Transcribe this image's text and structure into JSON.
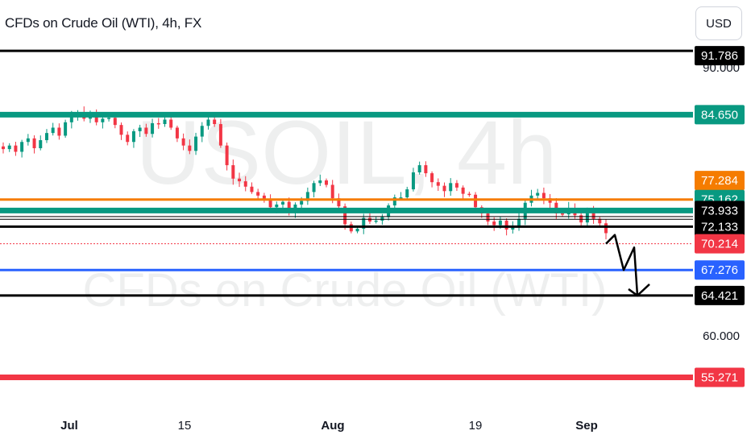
{
  "header": {
    "title": "CFDs on Crude Oil (WTI), 4h, FX",
    "currency": "USD"
  },
  "chart_data": {
    "type": "candlestick",
    "watermark": {
      "symbol": "USOIL, 4h",
      "description": "CFDs on Crude Oil (WTI)"
    },
    "x_ticks": [
      "Jul",
      "15",
      "Aug",
      "19",
      "Sep"
    ],
    "y_ticks": [
      "90.000",
      "60.000"
    ],
    "horizontal_levels": [
      {
        "label": "91.786",
        "value": 91.786,
        "line_color": "#000000",
        "label_bg": "#000000",
        "label_color": "#ffffff",
        "style": "solid"
      },
      {
        "label": "84.650",
        "value": 84.65,
        "line_color": "#089981",
        "label_bg": "#089981",
        "label_color": "#ffffff",
        "style": "thick"
      },
      {
        "label": "77.284",
        "value": 77.284,
        "line_color": "#f57c00",
        "label_bg": "#f57c00",
        "label_color": "#ffffff",
        "style": "label-only"
      },
      {
        "label": "75.162",
        "value": 75.162,
        "line_color": "#f57c00",
        "label_bg": "#089981",
        "label_color": "#ffffff",
        "style": "solid"
      },
      {
        "label": "73.933",
        "value": 73.933,
        "line_color": "#089981",
        "label_bg": "#000000",
        "label_color": "#ffffff",
        "style": "thick"
      },
      {
        "label": "72.133",
        "value": 72.133,
        "line_color": "#000000",
        "label_bg": "#000000",
        "label_color": "#ffffff",
        "style": "solid"
      },
      {
        "label": "70.214",
        "value": 70.214,
        "line_color": "#f23645",
        "label_bg": "#f23645",
        "label_color": "#ffffff",
        "style": "dotted"
      },
      {
        "label": "67.276",
        "value": 67.276,
        "line_color": "#2962ff",
        "label_bg": "#2962ff",
        "label_color": "#ffffff",
        "style": "solid"
      },
      {
        "label": "64.421",
        "value": 64.421,
        "line_color": "#000000",
        "label_bg": "#000000",
        "label_color": "#ffffff",
        "style": "solid"
      },
      {
        "label": "55.271",
        "value": 55.271,
        "line_color": "#f23645",
        "label_bg": "#f23645",
        "label_color": "#ffffff",
        "style": "thick"
      }
    ],
    "price_path": [
      80.8,
      81.2,
      80.5,
      81.6,
      82.0,
      80.9,
      81.8,
      82.6,
      83.2,
      82.3,
      83.8,
      84.4,
      84.9,
      84.2,
      84.7,
      83.8,
      84.2,
      84.3,
      83.5,
      82.4,
      81.6,
      82.8,
      83.2,
      82.5,
      83.7,
      83.6,
      84.1,
      83.2,
      82.0,
      81.2,
      80.6,
      82.2,
      83.4,
      84.1,
      83.6,
      81.2,
      79.0,
      77.5,
      77.2,
      76.6,
      76.0,
      75.6,
      75.2,
      74.3,
      74.6,
      74.9,
      73.8,
      74.6,
      75.0,
      76.0,
      77.0,
      77.3,
      76.8,
      75.3,
      74.4,
      72.4,
      71.6,
      71.9,
      73.1,
      72.7,
      72.8,
      73.2,
      74.5,
      75.4,
      75.4,
      76.3,
      78.2,
      79.0,
      78.1,
      77.1,
      76.7,
      76.1,
      77.0,
      76.5,
      75.8,
      75.7,
      74.3,
      73.6,
      72.7,
      72.3,
      72.8,
      71.8,
      72.2,
      73.0,
      74.8,
      75.6,
      75.9,
      75.3,
      74.8,
      73.6,
      73.5,
      74.2,
      73.4,
      72.6,
      73.8,
      73.0,
      72.5,
      71.4
    ],
    "projection": [
      70.214,
      71.2,
      67.276,
      69.8,
      64.421,
      66.0
    ],
    "colors": {
      "up": "#089981",
      "down": "#f23645"
    }
  }
}
